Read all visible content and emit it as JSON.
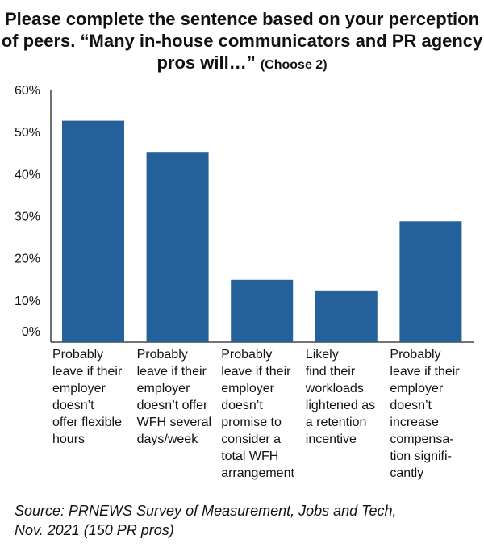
{
  "title": {
    "main": "Please complete the sentence based on your perception of peers. “Many in-house communicators and PR agency pros will…”",
    "note": "(Choose 2)"
  },
  "chart_data": {
    "type": "bar",
    "title": "Please complete the sentence based on your perception of peers. “Many in-house communicators and PR agency pros will…” (Choose 2)",
    "categories": [
      "Probably leave if their employer doesn’t offer flexible hours",
      "Probably leave if their employer doesn’t offer WFH several days/week",
      "Probably leave if their employer doesn’t promise to consider a total WFH arrangement",
      "Likely find their workloads lightened as a retention incentive",
      "Probably leave if their employer doesn’t increase compensa-tion signifi-cantly"
    ],
    "values": [
      52.6,
      45.2,
      14.8,
      12.3,
      28.7
    ],
    "ylim": [
      0,
      60
    ],
    "yticks": [
      "0%",
      "10%",
      "20%",
      "30%",
      "40%",
      "50%",
      "60%"
    ],
    "unit": "%",
    "color": "#24609a",
    "grid": false
  },
  "labels": [
    [
      "Probably",
      "leave if their",
      "employer",
      "doesn’t",
      "offer flexible",
      "hours"
    ],
    [
      "Probably",
      "leave if their",
      "employer",
      "doesn’t offer",
      "WFH several",
      "days/week"
    ],
    [
      "Probably",
      "leave if their",
      "employer",
      "doesn’t",
      "promise to",
      "consider a",
      "total WFH",
      "arrangement"
    ],
    [
      "Likely",
      "find their",
      "workloads",
      "lightened as",
      "a retention",
      "incentive"
    ],
    [
      "Probably",
      "leave if their",
      "employer",
      "doesn’t",
      "increase",
      "compensa-",
      "tion signifi-",
      "cantly"
    ]
  ],
  "source": {
    "line1": "Source: PRNEWS Survey of Measurement, Jobs and Tech,",
    "line2": "Nov. 2021 (150 PR pros)"
  }
}
